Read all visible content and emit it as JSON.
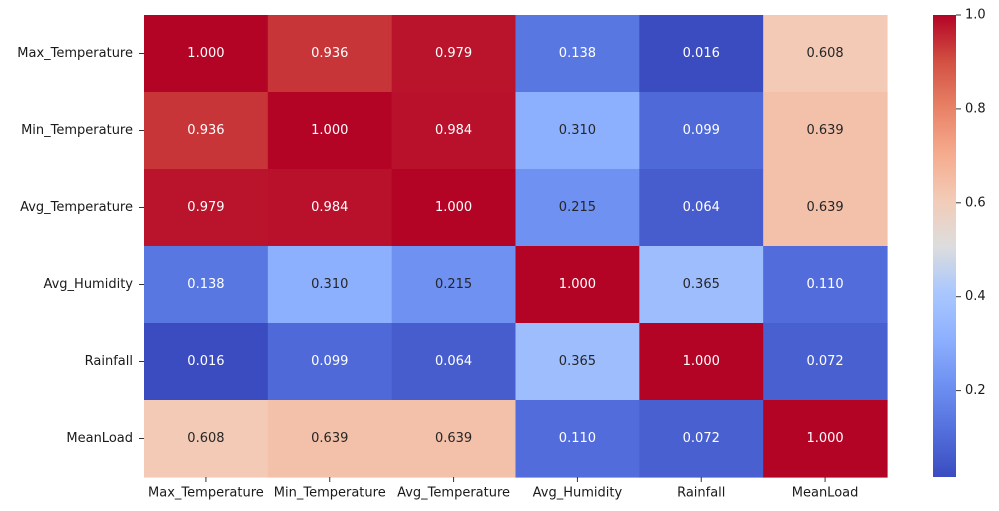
{
  "chart_data": {
    "type": "heatmap",
    "title": "",
    "xlabel": "",
    "ylabel": "",
    "rows": [
      "Max_Temperature",
      "Min_Temperature",
      "Avg_Temperature",
      "Avg_Humidity",
      "Rainfall",
      "MeanLoad"
    ],
    "columns": [
      "Max_Temperature",
      "Min_Temperature",
      "Avg_Temperature",
      "Avg_Humidity",
      "Rainfall",
      "MeanLoad"
    ],
    "values": [
      [
        1.0,
        0.936,
        0.979,
        0.138,
        0.016,
        0.608
      ],
      [
        0.936,
        1.0,
        0.984,
        0.31,
        0.099,
        0.639
      ],
      [
        0.979,
        0.984,
        1.0,
        0.215,
        0.064,
        0.639
      ],
      [
        0.138,
        0.31,
        0.215,
        1.0,
        0.365,
        0.11
      ],
      [
        0.016,
        0.099,
        0.064,
        0.365,
        1.0,
        0.072
      ],
      [
        0.608,
        0.639,
        0.639,
        0.11,
        0.072,
        1.0
      ]
    ],
    "value_format": "3 decimals",
    "colormap": "coolwarm",
    "color_range": [
      0.016,
      1.0
    ],
    "colorbar": {
      "placement": "right",
      "ticks": [
        0.2,
        0.4,
        0.6,
        0.8,
        1.0
      ],
      "tick_labels": [
        "0.2",
        "0.4",
        "0.6",
        "0.8",
        "1.0"
      ]
    },
    "grid": false,
    "legend": "colorbar-right"
  }
}
